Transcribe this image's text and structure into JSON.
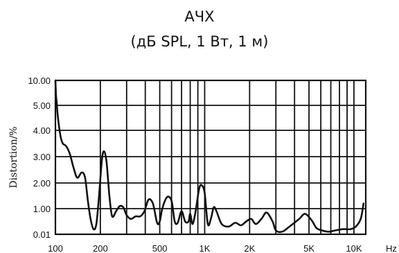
{
  "header": {
    "title": "АЧХ",
    "subtitle": "(дБ SPL, 1 Вт, 1 м)"
  },
  "chart_data": {
    "type": "line",
    "title": "АЧХ",
    "subtitle": "(дБ SPL, 1 Вт, 1 м)",
    "xlabel": "Hz",
    "ylabel": "Distortion/%",
    "x_scale": "log",
    "xlim": [
      100,
      12000
    ],
    "x_ticks": [
      {
        "value": 100,
        "label": "100"
      },
      {
        "value": 200,
        "label": "200"
      },
      {
        "value": 500,
        "label": "500"
      },
      {
        "value": 1000,
        "label": "1K"
      },
      {
        "value": 2000,
        "label": "2K"
      },
      {
        "value": 5000,
        "label": "5K"
      },
      {
        "value": 10000,
        "label": "10K"
      }
    ],
    "x_gridlines": [
      100,
      200,
      300,
      400,
      500,
      600,
      700,
      800,
      900,
      1000,
      2000,
      3000,
      4000,
      5000,
      6000,
      7000,
      8000,
      9000,
      10000,
      12000
    ],
    "y_tick_labels": [
      "0.01",
      "1.00",
      "2.00",
      "3.00",
      "4.00",
      "5.00",
      "10.00"
    ],
    "grid": true,
    "series": [
      {
        "values": [
          [
            100,
            10.0
          ],
          [
            101,
            7.0
          ],
          [
            102,
            5.5
          ],
          [
            104,
            4.5
          ],
          [
            108,
            3.8
          ],
          [
            112,
            3.5
          ],
          [
            118,
            3.4
          ],
          [
            125,
            3.1
          ],
          [
            132,
            2.6
          ],
          [
            140,
            2.2
          ],
          [
            150,
            2.4
          ],
          [
            158,
            2.2
          ],
          [
            165,
            1.3
          ],
          [
            172,
            0.6
          ],
          [
            180,
            0.2
          ],
          [
            188,
            0.4
          ],
          [
            196,
            1.5
          ],
          [
            205,
            2.9
          ],
          [
            212,
            3.2
          ],
          [
            220,
            2.8
          ],
          [
            230,
            1.5
          ],
          [
            240,
            0.7
          ],
          [
            255,
            0.9
          ],
          [
            270,
            1.1
          ],
          [
            285,
            1.05
          ],
          [
            300,
            0.75
          ],
          [
            320,
            0.6
          ],
          [
            345,
            0.7
          ],
          [
            370,
            0.7
          ],
          [
            395,
            0.9
          ],
          [
            420,
            1.35
          ],
          [
            450,
            1.2
          ],
          [
            480,
            0.45
          ],
          [
            500,
            0.5
          ],
          [
            520,
            1.0
          ],
          [
            560,
            1.45
          ],
          [
            600,
            1.3
          ],
          [
            630,
            0.5
          ],
          [
            660,
            0.45
          ],
          [
            700,
            0.9
          ],
          [
            740,
            0.5
          ],
          [
            780,
            0.5
          ],
          [
            800,
            0.8
          ],
          [
            830,
            0.4
          ],
          [
            870,
            0.9
          ],
          [
            920,
            1.8
          ],
          [
            960,
            1.9
          ],
          [
            1000,
            1.6
          ],
          [
            1050,
            0.4
          ],
          [
            1100,
            0.6
          ],
          [
            1150,
            1.05
          ],
          [
            1200,
            0.9
          ],
          [
            1300,
            0.4
          ],
          [
            1450,
            0.3
          ],
          [
            1600,
            0.45
          ],
          [
            1750,
            0.35
          ],
          [
            1900,
            0.5
          ],
          [
            2050,
            0.6
          ],
          [
            2200,
            0.4
          ],
          [
            2400,
            0.6
          ],
          [
            2600,
            0.85
          ],
          [
            2850,
            0.5
          ],
          [
            3000,
            0.15
          ],
          [
            3300,
            0.1
          ],
          [
            3700,
            0.3
          ],
          [
            4300,
            0.6
          ],
          [
            4700,
            0.8
          ],
          [
            5200,
            0.55
          ],
          [
            5600,
            0.25
          ],
          [
            6100,
            0.15
          ],
          [
            6800,
            0.1
          ],
          [
            7500,
            0.15
          ],
          [
            8500,
            0.2
          ],
          [
            9500,
            0.2
          ],
          [
            10300,
            0.3
          ],
          [
            11100,
            0.6
          ],
          [
            11600,
            1.2
          ]
        ]
      }
    ]
  }
}
